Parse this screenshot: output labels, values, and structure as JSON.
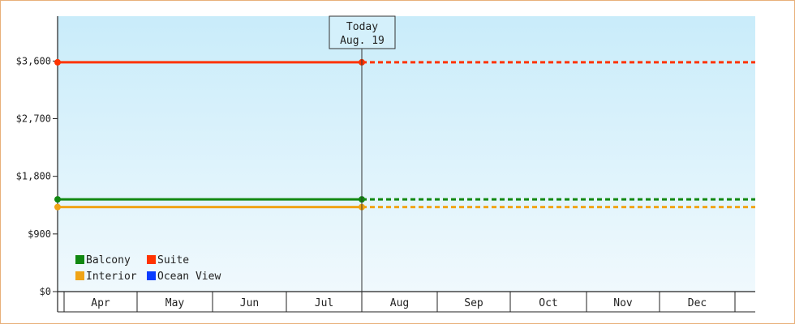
{
  "chart_data": {
    "type": "line",
    "categories": [
      "Apr",
      "May",
      "Jun",
      "Jul",
      "Aug",
      "Sep",
      "Oct",
      "Nov",
      "Dec"
    ],
    "ylim": [
      0,
      4300
    ],
    "yticks": [
      {
        "value": 0,
        "label": "$0"
      },
      {
        "value": 900,
        "label": "$900"
      },
      {
        "value": 1800,
        "label": "$1,800"
      },
      {
        "value": 2700,
        "label": "$2,700"
      },
      {
        "value": 3600,
        "label": "$3,600"
      }
    ],
    "today": {
      "title": "Today",
      "date": "Aug. 19",
      "position": 4.0
    },
    "series": [
      {
        "name": "Balcony",
        "color": "#118811",
        "values": [
          1440,
          1440
        ],
        "x": [
          0,
          4.0
        ]
      },
      {
        "name": "Interior",
        "color": "#f0a416",
        "values": [
          1320,
          1320
        ],
        "x": [
          0,
          4.0
        ]
      },
      {
        "name": "Suite",
        "color": "#ff3300",
        "values": [
          3580,
          3580
        ],
        "x": [
          0,
          4.0
        ]
      },
      {
        "name": "Ocean View",
        "color": "#0a3cff",
        "values": [],
        "x": []
      }
    ],
    "projection": "dotted continuation after today",
    "background": {
      "top": "#c9ecfa",
      "bottom": "#f0f9fd"
    },
    "grid": false,
    "legend_position": "bottom-left"
  }
}
